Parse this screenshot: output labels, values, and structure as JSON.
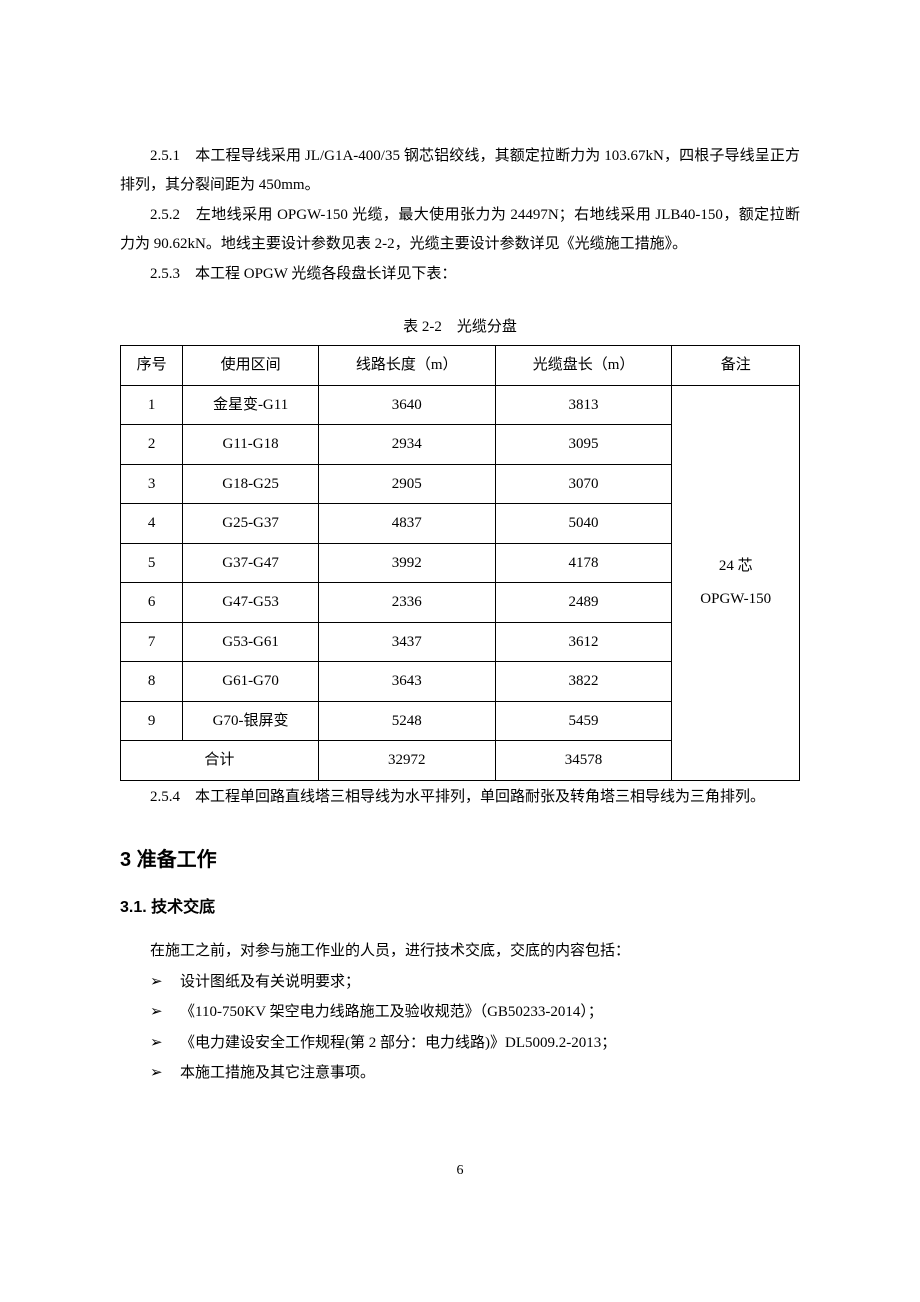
{
  "paragraphs": {
    "p251": "2.5.1　本工程导线采用 JL/G1A-400/35 钢芯铝绞线，其额定拉断力为 103.67kN，四根子导线呈正方排列，其分裂间距为 450mm。",
    "p252": "2.5.2　左地线采用 OPGW-150 光缆，最大使用张力为 24497N；右地线采用 JLB40-150，额定拉断力为 90.62kN。地线主要设计参数见表 2-2，光缆主要设计参数详见《光缆施工措施》。",
    "p253": "2.5.3　本工程 OPGW 光缆各段盘长详见下表：",
    "p254": "2.5.4　本工程单回路直线塔三相导线为水平排列，单回路耐张及转角塔三相导线为三角排列。"
  },
  "table": {
    "caption": "表 2-2　光缆分盘",
    "headers": [
      "序号",
      "使用区间",
      "线路长度（m）",
      "光缆盘长（m）",
      "备注"
    ],
    "rows": [
      [
        "1",
        "金星变-G11",
        "3640",
        "3813"
      ],
      [
        "2",
        "G11-G18",
        "2934",
        "3095"
      ],
      [
        "3",
        "G18-G25",
        "2905",
        "3070"
      ],
      [
        "4",
        "G25-G37",
        "4837",
        "5040"
      ],
      [
        "5",
        "G37-G47",
        "3992",
        "4178"
      ],
      [
        "6",
        "G47-G53",
        "2336",
        "2489"
      ],
      [
        "7",
        "G53-G61",
        "3437",
        "3612"
      ],
      [
        "8",
        "G61-G70",
        "3643",
        "3822"
      ],
      [
        "9",
        "G70-银屏变",
        "5248",
        "5459"
      ]
    ],
    "totalLabel": "合计",
    "totalLength": "32972",
    "totalReel": "34578",
    "remark1": "24 芯",
    "remark2": "OPGW-150"
  },
  "section3": {
    "title": "3  准备工作",
    "sub31": "3.1. 技术交底",
    "intro": "在施工之前，对参与施工作业的人员，进行技术交底，交底的内容包括：",
    "items": [
      "设计图纸及有关说明要求；",
      "《110-750KV 架空电力线路施工及验收规范》（GB50233-2014）；",
      "《电力建设安全工作规程(第 2 部分：电力线路)》DL5009.2-2013；",
      "本施工措施及其它注意事项。"
    ]
  },
  "pageNumber": "6"
}
